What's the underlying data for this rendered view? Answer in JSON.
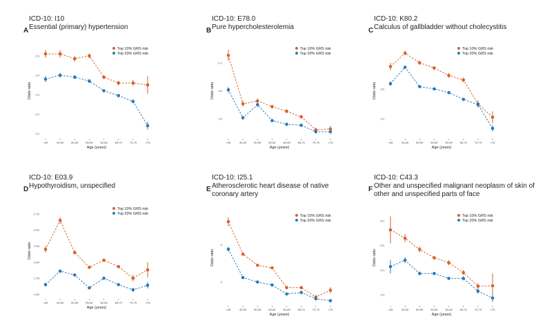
{
  "colors": {
    "top10": "#d95f2b",
    "top20": "#2a78b7",
    "axis": "#444444"
  },
  "chart_data": [
    {
      "type": "line",
      "letter": "A",
      "code": "ICD-10: I10",
      "title": "Essential (primary) hypertension",
      "xlabel": "Age (years)",
      "ylabel": "Odds ratio",
      "categories": [
        "<45",
        "45-50",
        "50-55",
        "55-60",
        "60-65",
        "65-70",
        "70-75",
        ">75"
      ],
      "yticks": [
        1.1,
        1.2,
        1.3,
        1.4,
        1.5
      ],
      "ytick_labels": [
        "1.1-",
        "1.2-",
        "1.3-",
        "1.4-",
        "1.5-"
      ],
      "ylim": [
        1.08,
        1.56
      ],
      "legend": [
        "Top 10% GRS risk",
        "Top 20% GRS risk"
      ],
      "series": [
        {
          "name": "Top 10% GRS risk",
          "values": [
            1.51,
            1.51,
            1.485,
            1.5,
            1.39,
            1.36,
            1.36,
            1.35
          ],
          "err": [
            0.02,
            0.02,
            0.015,
            0.012,
            0.01,
            0.012,
            0.015,
            0.045
          ]
        },
        {
          "name": "Top 20% GRS risk",
          "values": [
            1.38,
            1.4,
            1.39,
            1.37,
            1.32,
            1.295,
            1.265,
            1.14
          ],
          "err": [
            0.015,
            0.012,
            0.01,
            0.01,
            0.008,
            0.008,
            0.01,
            0.02
          ]
        }
      ]
    },
    {
      "type": "line",
      "letter": "B",
      "code": "ICD-10: E78.0",
      "title": "Pure hypercholesterolemia",
      "xlabel": "Age (years)",
      "ylabel": "Odds ratio",
      "categories": [
        "<45",
        "45-50",
        "50-55",
        "55-60",
        "60-65",
        "65-70",
        "70-75",
        ">75"
      ],
      "yticks": [
        1.5,
        1.8,
        2.1
      ],
      "ytick_labels": [
        "1.5-",
        "1.8-",
        "2.1-"
      ],
      "ylim": [
        1.3,
        2.3
      ],
      "legend": [
        "Top 10% GRS risk",
        "Top 20% GRS risk"
      ],
      "series": [
        {
          "name": "Top 10% GRS risk",
          "values": [
            2.18,
            1.66,
            1.69,
            1.63,
            1.58,
            1.52,
            1.38,
            1.39
          ],
          "err": [
            0.06,
            0.03,
            0.025,
            0.02,
            0.02,
            0.02,
            0.025,
            0.035
          ]
        },
        {
          "name": "Top 20% GRS risk",
          "values": [
            1.81,
            1.51,
            1.65,
            1.48,
            1.44,
            1.43,
            1.36,
            1.36
          ],
          "err": [
            0.03,
            0.02,
            0.02,
            0.015,
            0.015,
            0.015,
            0.02,
            0.02
          ]
        }
      ]
    },
    {
      "type": "line",
      "letter": "C",
      "code": "ICD-10: K80.2",
      "title": "Calculus of gallbladder without cholecystitis",
      "xlabel": "Age (years)",
      "ylabel": "Odds ratio",
      "categories": [
        "<45",
        "45-50",
        "50-55",
        "55-60",
        "60-65",
        "65-70",
        "70-75",
        ">75"
      ],
      "yticks": [
        1.2,
        1.6
      ],
      "ytick_labels": [
        "1.2-",
        "1.6-"
      ],
      "ylim": [
        0.95,
        2.2
      ],
      "legend": [
        "Top 10% GRS risk",
        "Top 20% GRS risk"
      ],
      "series": [
        {
          "name": "Top 10% GRS risk",
          "values": [
            1.9,
            2.08,
            1.95,
            1.88,
            1.78,
            1.72,
            1.4,
            1.22
          ],
          "err": [
            0.05,
            0.03,
            0.03,
            0.025,
            0.03,
            0.03,
            0.05,
            0.08
          ]
        },
        {
          "name": "Top 20% GRS risk",
          "values": [
            1.67,
            1.89,
            1.63,
            1.6,
            1.55,
            1.46,
            1.39,
            1.07
          ],
          "err": [
            0.03,
            0.02,
            0.02,
            0.02,
            0.02,
            0.02,
            0.03,
            0.04
          ]
        }
      ]
    },
    {
      "type": "line",
      "letter": "D",
      "code": "ICD-10: E03.9",
      "title": "Hypothyroidism, unspecified",
      "xlabel": "Age (years)",
      "ylabel": "Odds ratio",
      "categories": [
        "<45",
        "45-50",
        "50-55",
        "55-60",
        "60-65",
        "65-70",
        "70-75",
        ">75"
      ],
      "yticks": [
        1.5,
        1.75,
        2.0,
        2.25,
        2.5,
        2.75
      ],
      "ytick_labels": [
        "1.50-",
        "1.75-",
        "2.00-",
        "2.25-",
        "2.50-",
        "2.75-"
      ],
      "ylim": [
        1.45,
        2.9
      ],
      "legend": [
        "Top 10% GRS risk",
        "Top 20% GRS risk"
      ],
      "series": [
        {
          "name": "Top 10% GRS risk",
          "values": [
            2.2,
            2.65,
            2.15,
            1.92,
            2.03,
            1.93,
            1.75,
            1.88
          ],
          "err": [
            0.05,
            0.05,
            0.03,
            0.025,
            0.025,
            0.025,
            0.05,
            0.12
          ]
        },
        {
          "name": "Top 20% GRS risk",
          "values": [
            1.65,
            1.86,
            1.8,
            1.6,
            1.75,
            1.65,
            1.57,
            1.64
          ],
          "err": [
            0.03,
            0.025,
            0.02,
            0.02,
            0.02,
            0.02,
            0.03,
            0.05
          ]
        }
      ]
    },
    {
      "type": "line",
      "letter": "E",
      "code": "ICD-10: I25.1",
      "title": "Atherosclerotic heart disease of native coronary artery",
      "xlabel": "Age (years)",
      "ylabel": "Odds ratio",
      "categories": [
        "<45",
        "45-50",
        "50-55",
        "55-60",
        "60-65",
        "65-70",
        "70-75",
        ">75"
      ],
      "yticks": [
        2,
        3
      ],
      "ytick_labels": [
        "2-",
        "3-"
      ],
      "ylim": [
        1.4,
        3.9
      ],
      "legend": [
        "Top 10% GRS risk",
        "Top 20% GRS risk"
      ],
      "series": [
        {
          "name": "Top 10% GRS risk",
          "values": [
            3.62,
            2.75,
            2.45,
            2.38,
            1.85,
            1.85,
            1.6,
            1.78
          ],
          "err": [
            0.12,
            0.05,
            0.04,
            0.035,
            0.03,
            0.03,
            0.04,
            0.08
          ]
        },
        {
          "name": "Top 20% GRS risk",
          "values": [
            2.88,
            2.12,
            2.0,
            1.92,
            1.68,
            1.72,
            1.55,
            1.5
          ],
          "err": [
            0.06,
            0.03,
            0.025,
            0.025,
            0.02,
            0.02,
            0.03,
            0.04
          ]
        }
      ]
    },
    {
      "type": "line",
      "letter": "F",
      "code": "ICD-10: C43.3",
      "title": "Other and unspecified malignant neoplasm of skin of other and unspecified parts of face",
      "xlabel": "Age (years)",
      "ylabel": "Odds ratio",
      "categories": [
        "<45",
        "45-50",
        "50-55",
        "55-60",
        "60-65",
        "65-70",
        "70-75",
        ">75"
      ],
      "yticks": [
        1.5,
        2.0,
        2.5,
        3.0
      ],
      "ytick_labels": [
        "1.5-",
        "2.0-",
        "2.5-",
        "3.0-"
      ],
      "ylim": [
        1.3,
        3.2
      ],
      "legend": [
        "Top 10% GRS risk",
        "Top 20% GRS risk"
      ],
      "series": [
        {
          "name": "Top 10% GRS risk",
          "values": [
            2.82,
            2.65,
            2.42,
            2.25,
            2.15,
            1.95,
            1.67,
            1.68
          ],
          "err": [
            0.28,
            0.08,
            0.06,
            0.04,
            0.05,
            0.05,
            0.06,
            0.25
          ]
        },
        {
          "name": "Top 20% GRS risk",
          "values": [
            2.07,
            2.2,
            1.93,
            1.93,
            1.83,
            1.83,
            1.57,
            1.43
          ],
          "err": [
            0.14,
            0.06,
            0.04,
            0.03,
            0.03,
            0.04,
            0.05,
            0.08
          ]
        }
      ]
    }
  ]
}
